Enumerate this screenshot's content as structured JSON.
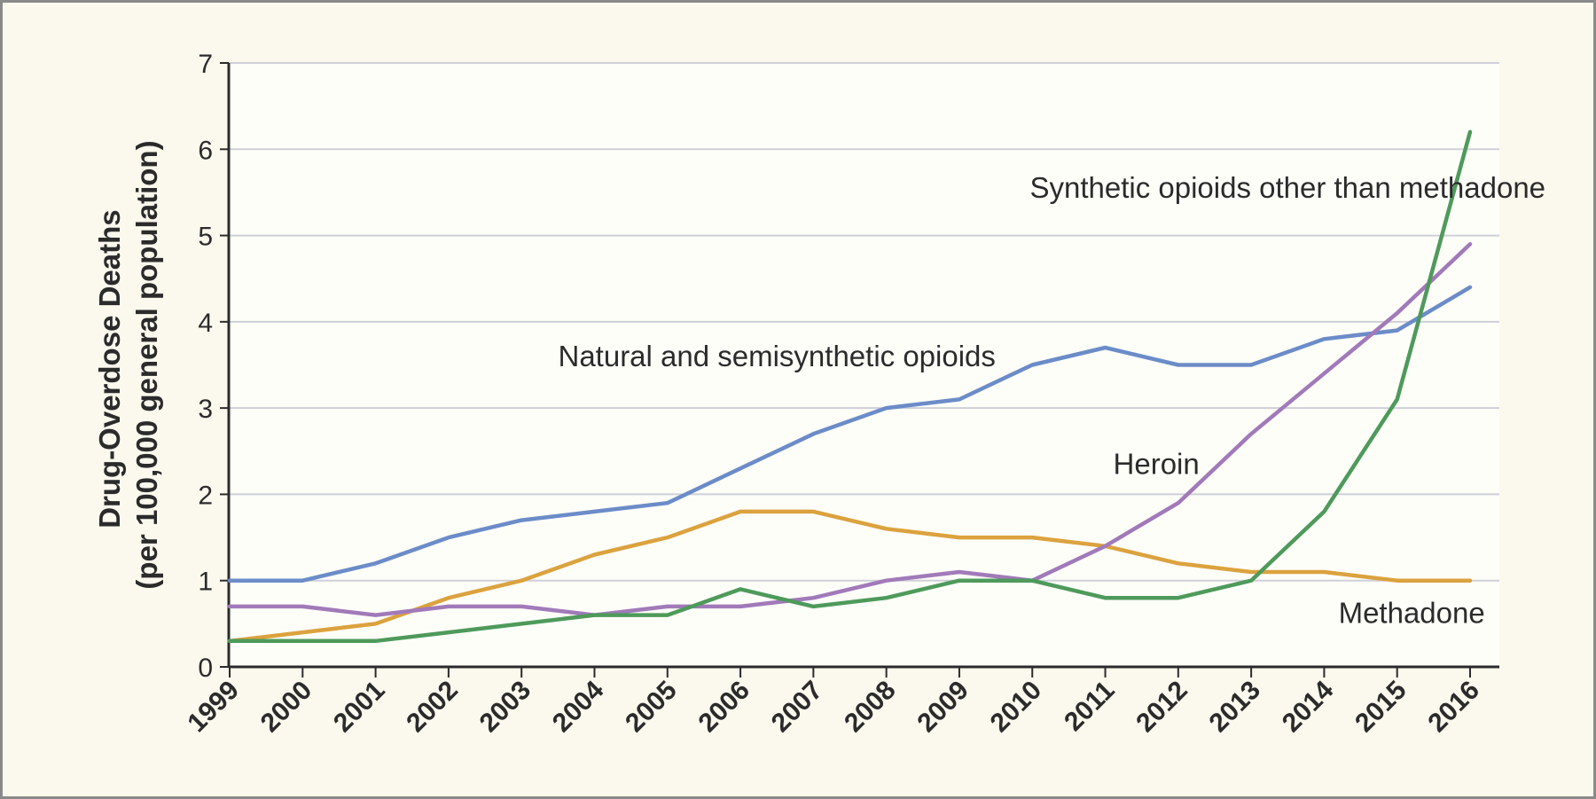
{
  "chart_data": {
    "type": "line",
    "title": "",
    "xlabel": "",
    "ylabel": [
      "Drug-Overdose Deaths",
      "(per 100,000 general population)"
    ],
    "ylim": [
      0,
      7
    ],
    "yticks": [
      0,
      1,
      2,
      3,
      4,
      5,
      6,
      7
    ],
    "grid": true,
    "legend": "none",
    "categories": [
      "1999",
      "2000",
      "2001",
      "2002",
      "2003",
      "2004",
      "2005",
      "2006",
      "2007",
      "2008",
      "2009",
      "2010",
      "2011",
      "2012",
      "2013",
      "2014",
      "2015",
      "2016"
    ],
    "series": [
      {
        "name": "Natural and semisynthetic opioids",
        "color": "#6b8cc8",
        "values": [
          1.0,
          1.0,
          1.2,
          1.5,
          1.7,
          1.8,
          1.9,
          2.3,
          2.7,
          3.0,
          3.1,
          3.5,
          3.7,
          3.5,
          3.5,
          3.8,
          3.9,
          4.4
        ]
      },
      {
        "name": "Methadone",
        "color": "#dba23e",
        "values": [
          0.3,
          0.4,
          0.5,
          0.8,
          1.0,
          1.3,
          1.5,
          1.8,
          1.8,
          1.6,
          1.5,
          1.5,
          1.4,
          1.2,
          1.1,
          1.1,
          1.0,
          1.0
        ]
      },
      {
        "name": "Heroin",
        "color": "#a17ab9",
        "values": [
          0.7,
          0.7,
          0.6,
          0.7,
          0.7,
          0.6,
          0.7,
          0.7,
          0.8,
          1.0,
          1.1,
          1.0,
          1.4,
          1.9,
          2.7,
          3.4,
          4.1,
          4.9
        ]
      },
      {
        "name": "Synthetic opioids other than methadone",
        "color": "#4e9a5b",
        "values": [
          0.3,
          0.3,
          0.3,
          0.4,
          0.5,
          0.6,
          0.6,
          0.9,
          0.7,
          0.8,
          1.0,
          1.0,
          0.8,
          0.8,
          1.0,
          1.8,
          3.1,
          6.2
        ]
      }
    ],
    "annotations": [
      {
        "series": "Synthetic opioids other than methadone",
        "text": "Synthetic opioids other than methadone",
        "anchor_x": "2013.5",
        "anchor_y": 5.55
      },
      {
        "series": "Natural and semisynthetic opioids",
        "text": "Natural and semisynthetic opioids",
        "anchor_x": "2006.5",
        "anchor_y": 3.6
      },
      {
        "series": "Heroin",
        "text": "Heroin",
        "anchor_x": "2011.7",
        "anchor_y": 2.35
      },
      {
        "series": "Methadone",
        "text": "Methadone",
        "anchor_x": "2015.2",
        "anchor_y": 0.62
      }
    ]
  }
}
